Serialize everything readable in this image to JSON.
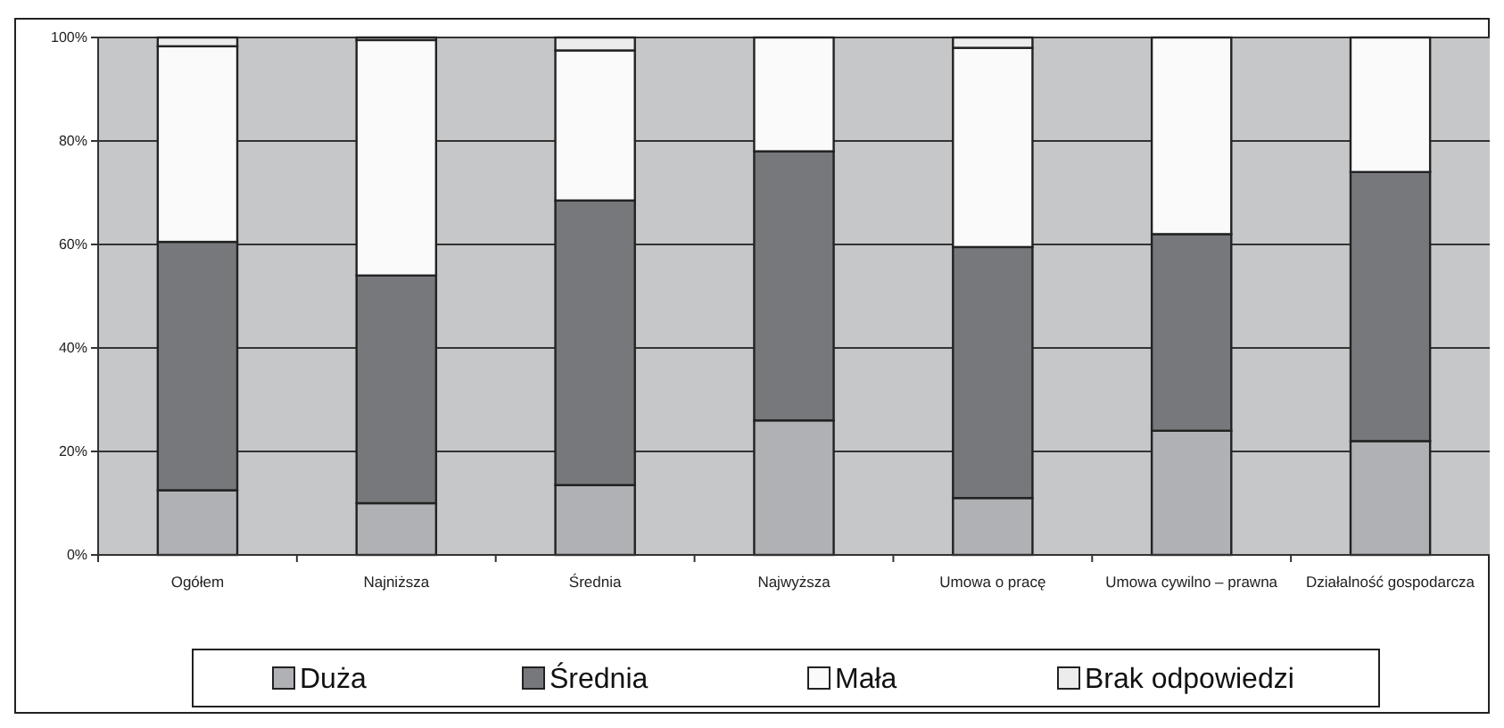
{
  "chart_data": {
    "type": "bar",
    "stacked": true,
    "categories": [
      "Ogółem",
      "Najniższa",
      "Średnia",
      "Najwyższa",
      "Umowa o pracę",
      "Umowa cywilno – prawna",
      "Działalność gospodarcza"
    ],
    "series": [
      {
        "name": "Duża",
        "color": "#b0b1b4",
        "values": [
          12.5,
          10,
          13.5,
          26,
          11,
          24,
          22
        ]
      },
      {
        "name": "Średnia",
        "color": "#77787c",
        "values": [
          48,
          44,
          55,
          52,
          48.5,
          38,
          52
        ]
      },
      {
        "name": "Mała",
        "color": "#fafafa",
        "values": [
          37.8,
          45.5,
          29,
          22,
          38.5,
          38,
          26
        ]
      },
      {
        "name": "Brak odpowiedzi",
        "color": "#ececec",
        "values": [
          1.7,
          0.5,
          2.5,
          0,
          2,
          0,
          0
        ]
      }
    ],
    "ylim": [
      0,
      100
    ],
    "yticks": [
      {
        "value": 0,
        "label": "0%"
      },
      {
        "value": 20,
        "label": "20%"
      },
      {
        "value": 40,
        "label": "40%"
      },
      {
        "value": 60,
        "label": "60%"
      },
      {
        "value": 80,
        "label": "80%"
      },
      {
        "value": 100,
        "label": "100%"
      }
    ],
    "grid": "y",
    "legend": "bottom"
  }
}
